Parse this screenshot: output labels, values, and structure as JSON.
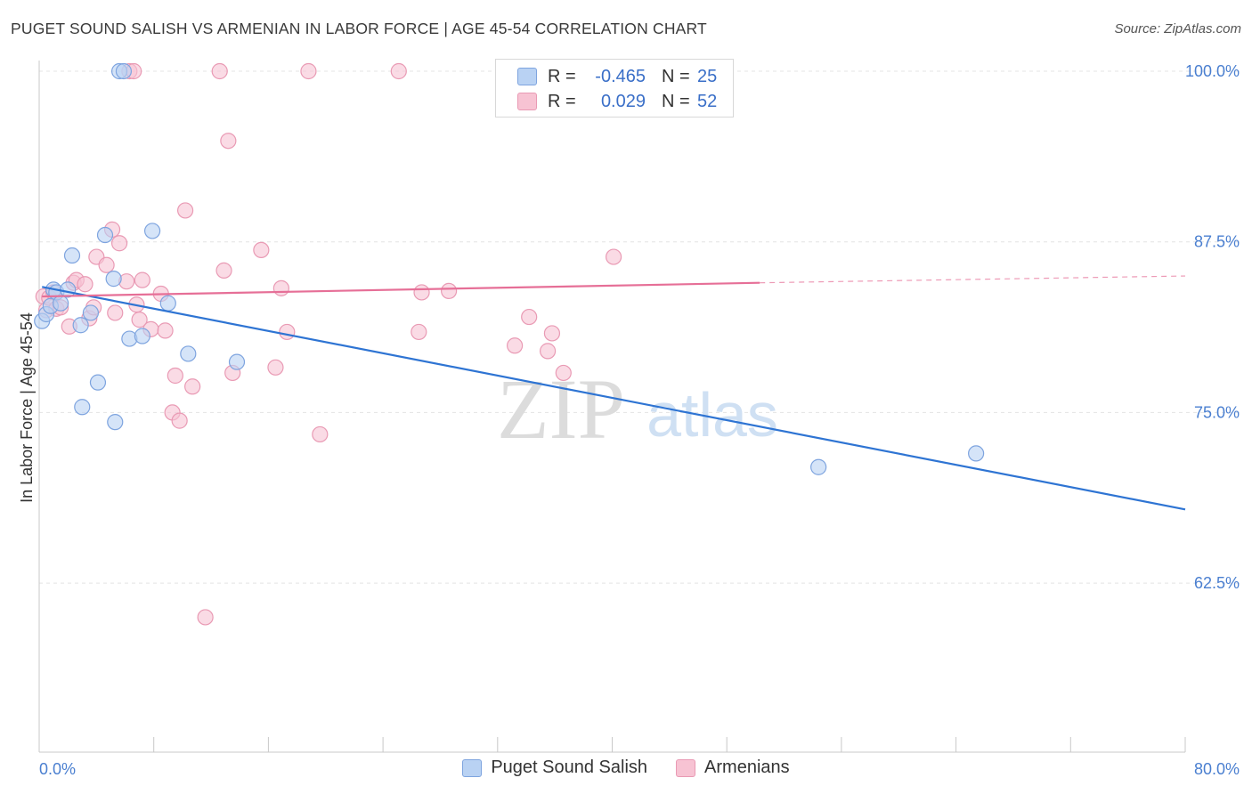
{
  "header": {
    "title": "PUGET SOUND SALISH VS ARMENIAN IN LABOR FORCE | AGE 45-54 CORRELATION CHART",
    "source": "Source: ZipAtlas.com"
  },
  "legend": {
    "rows": [
      {
        "r_label": "R =",
        "r_value": "-0.465",
        "n_label": "N =",
        "n_value": "25"
      },
      {
        "r_label": "R =",
        "r_value": "0.029",
        "n_label": "N =",
        "n_value": "52"
      }
    ]
  },
  "watermark": {
    "zip": "ZIP",
    "atlas": "atlas"
  },
  "colors": {
    "blue_fill": "#b9d2f3",
    "blue_stroke": "#7ea4df",
    "blue_line": "#2e74d3",
    "pink_fill": "#f7c3d3",
    "pink_stroke": "#e99ab4",
    "pink_line": "#e66f97",
    "tick_text": "#4a7fd0"
  },
  "chart_data": {
    "type": "scatter",
    "title": "PUGET SOUND SALISH VS ARMENIAN IN LABOR FORCE | AGE 45-54 CORRELATION CHART",
    "xlabel": "",
    "ylabel": "In Labor Force | Age 45-54",
    "xlim": [
      0,
      80
    ],
    "ylim": [
      50,
      101
    ],
    "x_tick_labels": [
      "0.0%",
      "80.0%"
    ],
    "y_ticks": [
      62.5,
      75.0,
      87.5,
      100.0
    ],
    "y_tick_labels": [
      "62.5%",
      "75.0%",
      "87.5%",
      "100.0%"
    ],
    "grid": "horizontal dashed",
    "series": [
      {
        "name": "Puget Sound Salish",
        "color": "#b9d2f3",
        "points": [
          [
            0.2,
            81.7
          ],
          [
            0.5,
            82.2
          ],
          [
            0.8,
            82.8
          ],
          [
            1.0,
            84.0
          ],
          [
            1.2,
            83.8
          ],
          [
            1.5,
            83.0
          ],
          [
            2.0,
            84.0
          ],
          [
            2.3,
            86.5
          ],
          [
            2.9,
            81.4
          ],
          [
            3.0,
            75.4
          ],
          [
            4.1,
            77.2
          ],
          [
            4.6,
            88.0
          ],
          [
            5.2,
            84.8
          ],
          [
            5.3,
            74.3
          ],
          [
            5.6,
            100.0
          ],
          [
            5.9,
            100.0
          ],
          [
            6.3,
            80.4
          ],
          [
            7.2,
            80.6
          ],
          [
            7.9,
            88.3
          ],
          [
            9.0,
            83.0
          ],
          [
            10.4,
            79.3
          ],
          [
            13.8,
            78.7
          ],
          [
            54.4,
            71.0
          ],
          [
            65.4,
            72.0
          ],
          [
            3.6,
            82.3
          ]
        ],
        "trend": {
          "x": [
            0.2,
            80.0
          ],
          "y": [
            84.2,
            67.9
          ]
        }
      },
      {
        "name": "Armenians",
        "color": "#f7c3d3",
        "points": [
          [
            0.3,
            83.5
          ],
          [
            0.5,
            82.5
          ],
          [
            0.7,
            83.4
          ],
          [
            1.0,
            83.8
          ],
          [
            1.2,
            82.6
          ],
          [
            1.5,
            82.7
          ],
          [
            2.1,
            81.3
          ],
          [
            2.4,
            84.5
          ],
          [
            2.6,
            84.7
          ],
          [
            3.2,
            84.4
          ],
          [
            3.5,
            81.9
          ],
          [
            3.8,
            82.7
          ],
          [
            4.0,
            86.4
          ],
          [
            4.7,
            85.8
          ],
          [
            5.1,
            88.4
          ],
          [
            5.3,
            82.3
          ],
          [
            5.6,
            87.4
          ],
          [
            6.1,
            84.6
          ],
          [
            6.3,
            100.0
          ],
          [
            6.6,
            100.0
          ],
          [
            6.8,
            82.9
          ],
          [
            7.0,
            81.8
          ],
          [
            7.2,
            84.7
          ],
          [
            7.8,
            81.1
          ],
          [
            8.5,
            83.7
          ],
          [
            8.8,
            81.0
          ],
          [
            9.3,
            75.0
          ],
          [
            9.5,
            77.7
          ],
          [
            9.8,
            74.4
          ],
          [
            10.2,
            89.8
          ],
          [
            10.7,
            76.9
          ],
          [
            11.6,
            60.0
          ],
          [
            12.6,
            100.0
          ],
          [
            12.9,
            85.4
          ],
          [
            13.2,
            94.9
          ],
          [
            13.5,
            77.9
          ],
          [
            15.5,
            86.9
          ],
          [
            16.5,
            78.3
          ],
          [
            16.9,
            84.1
          ],
          [
            17.3,
            80.9
          ],
          [
            18.8,
            100.0
          ],
          [
            19.6,
            73.4
          ],
          [
            25.1,
            100.0
          ],
          [
            26.5,
            80.9
          ],
          [
            26.7,
            83.8
          ],
          [
            28.6,
            83.9
          ],
          [
            33.2,
            79.9
          ],
          [
            34.2,
            82.0
          ],
          [
            35.5,
            79.5
          ],
          [
            35.8,
            80.8
          ],
          [
            36.6,
            77.9
          ],
          [
            40.1,
            86.4
          ]
        ],
        "trend": {
          "x": [
            0.2,
            50.3
          ],
          "y": [
            83.5,
            84.5
          ]
        },
        "trend_dashed": {
          "x": [
            50.3,
            80.0
          ],
          "y": [
            84.5,
            85.0
          ]
        }
      }
    ],
    "legend_placement": "top-center"
  }
}
